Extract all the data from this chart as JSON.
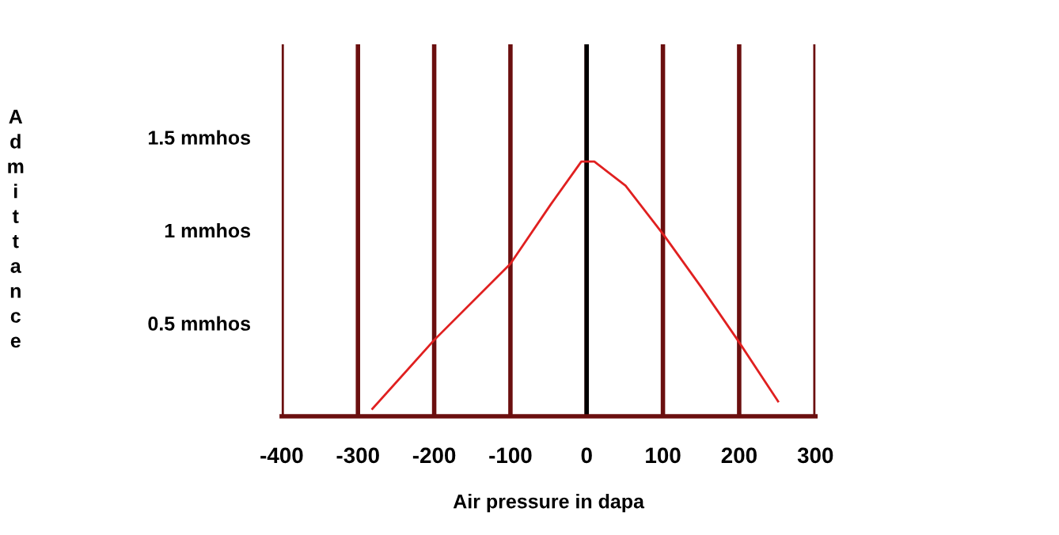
{
  "chart_data": {
    "type": "line",
    "xlabel": "Air pressure in dapa",
    "ylabel": "Admittance",
    "series": [
      {
        "color": "#e02020",
        "x": [
          -281,
          -200,
          -100,
          -47,
          -7,
          10,
          51,
          102,
          151,
          198,
          251
        ],
        "values": [
          0.04,
          0.41,
          0.82,
          1.14,
          1.37,
          1.37,
          1.24,
          0.97,
          0.69,
          0.41,
          0.08
        ]
      }
    ],
    "xlim": [
      -400,
      300
    ],
    "xticks": [
      -400,
      -300,
      -200,
      -100,
      0,
      100,
      200,
      300
    ],
    "ylim": [
      0,
      2.0
    ],
    "yticks": [
      {
        "value": 0.5,
        "label": "0.5 mmhos"
      },
      {
        "value": 1,
        "label": "1 mmhos"
      },
      {
        "value": 1.5,
        "label": "1.5 mmhos"
      }
    ],
    "grid": "x",
    "ref_lines": [
      {
        "axis": "x",
        "value": 0,
        "color": "#000000"
      }
    ],
    "marker": "none",
    "line_style": "solid",
    "legend": false
  }
}
